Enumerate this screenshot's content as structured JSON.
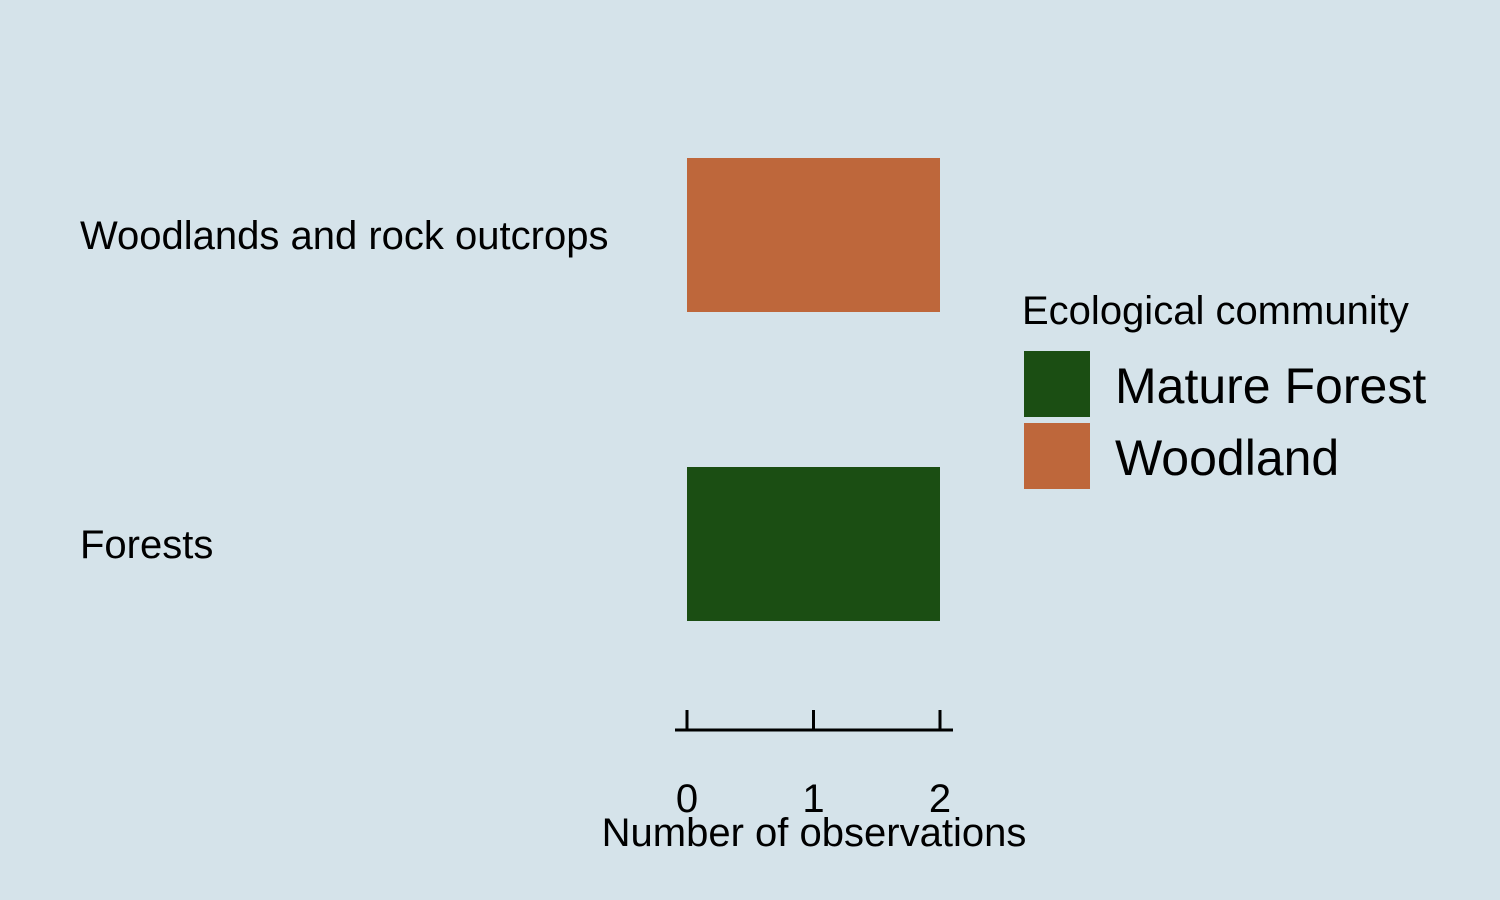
{
  "chart_data": {
    "type": "bar",
    "orientation": "horizontal",
    "categories": [
      "Woodlands and rock outcrops",
      "Forests"
    ],
    "series": [
      {
        "name": "Woodland",
        "color": "#be673b",
        "values": [
          2,
          0
        ]
      },
      {
        "name": "Mature Forest",
        "color": "#1b4e13",
        "values": [
          0,
          2
        ]
      }
    ],
    "bars": [
      {
        "category": "Woodlands and rock outcrops",
        "value": 2,
        "series": "Woodland",
        "color": "#be673b"
      },
      {
        "category": "Forests",
        "value": 2,
        "series": "Mature Forest",
        "color": "#1b4e13"
      }
    ],
    "xlabel": "Number of observations",
    "ylabel": "",
    "xlim": [
      0,
      2
    ],
    "xticks": [
      "0",
      "1",
      "2"
    ],
    "grid": false,
    "legend": {
      "title": "Ecological community",
      "placement": "right",
      "entries": [
        {
          "label": "Mature Forest",
          "color": "#1b4e13"
        },
        {
          "label": "Woodland",
          "color": "#be673b"
        }
      ]
    },
    "background": "#d5e3ea"
  }
}
